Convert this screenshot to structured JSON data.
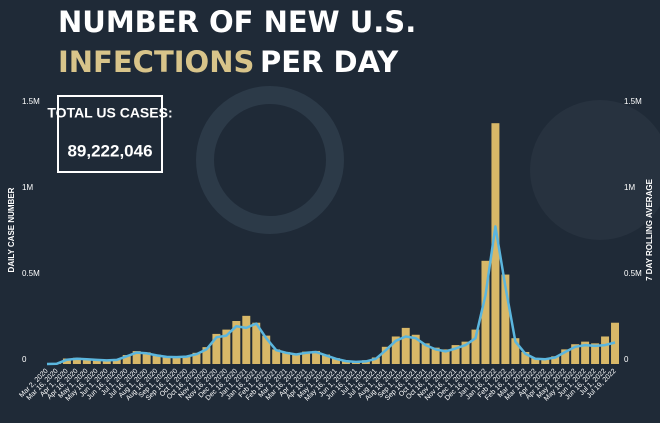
{
  "chart_data": {
    "type": "bar",
    "title": "NUMBER OF NEW U.S.",
    "title_highlight": "INFECTIONS",
    "title_rest": "PER DAY",
    "annotation_label": "TOTAL US CASES:",
    "annotation_value": "89,222,046",
    "y_label": "DAILY CASE NUMBER",
    "y2_label": "7 DAY ROLLING AVERAGE",
    "categories": [
      "Mar 2, 2020",
      "Mar 16, 2020",
      "Apr 1, 2020",
      "Apr 16, 2020",
      "May 1, 2020",
      "May 16, 2020",
      "Jun 1, 2020",
      "Jun 16, 2020",
      "Jul 1, 2020",
      "Jul 16, 2020",
      "Aug 1, 2020",
      "Aug 16, 2020",
      "Sep 1, 2020",
      "Sep 16, 2020",
      "Oct 1, 2020",
      "Oct 16, 2020",
      "Nov 1, 2020",
      "Nov 16, 2020",
      "Dec 1, 2020",
      "Dec 16, 2020",
      "Jan 1, 2021",
      "Jan 16, 2021",
      "Feb 1, 2021",
      "Feb 16, 2021",
      "Mar 1, 2021",
      "Mar 16, 2021",
      "Apr 1, 2021",
      "Apr 16, 2021",
      "May 1, 2021",
      "May 16, 2021",
      "Jun 1, 2021",
      "Jun 16, 2021",
      "Jul 1, 2021",
      "Jul 16, 2021",
      "Aug 1, 2021",
      "Aug 16, 2021",
      "Sep 1, 2021",
      "Sep 16, 2021",
      "Oct 1, 2021",
      "Oct 16, 2021",
      "Nov 1, 2021",
      "Nov 16, 2021",
      "Dec 1, 2021",
      "Dec 16, 2021",
      "Jan 1, 2022",
      "Jan 16, 2022",
      "Feb 1, 2022",
      "Feb 16, 2022",
      "Mar 1, 2022",
      "Mar 16, 2022",
      "Apr 1, 2022",
      "Apr 16, 2022",
      "May 1, 2022",
      "May 16, 2022",
      "Jun 1, 2022",
      "Jun 16, 2022",
      "Jul 1, 2022",
      "Jul 19, 2022"
    ],
    "series": [
      {
        "name": "Daily cases",
        "color": "#d8b868",
        "values": [
          0,
          3000,
          32000,
          36000,
          31000,
          27000,
          24000,
          29000,
          52000,
          75000,
          68000,
          55000,
          46000,
          44000,
          48000,
          65000,
          98000,
          175000,
          200000,
          250000,
          280000,
          240000,
          165000,
          85000,
          70000,
          60000,
          72000,
          76000,
          55000,
          34000,
          19000,
          13000,
          22000,
          38000,
          100000,
          160000,
          210000,
          170000,
          120000,
          95000,
          85000,
          110000,
          130000,
          200000,
          600000,
          1400000,
          520000,
          150000,
          70000,
          35000,
          33000,
          45000,
          85000,
          115000,
          130000,
          120000,
          160000,
          240000
        ]
      },
      {
        "name": "7 day rolling average",
        "color": "#5bb6de",
        "axis": "y2",
        "values": [
          0,
          2000,
          25000,
          30000,
          28000,
          24000,
          21000,
          24000,
          45000,
          66000,
          62000,
          50000,
          41000,
          40000,
          43000,
          57000,
          85000,
          155000,
          165000,
          220000,
          210000,
          235000,
          150000,
          80000,
          65000,
          55000,
          65000,
          70000,
          50000,
          30000,
          17000,
          12000,
          15000,
          30000,
          80000,
          135000,
          160000,
          150000,
          110000,
          85000,
          73000,
          90000,
          110000,
          150000,
          400000,
          800000,
          450000,
          130000,
          60000,
          30000,
          28000,
          38000,
          70000,
          100000,
          110000,
          105000,
          110000,
          125000
        ]
      }
    ],
    "ylim": [
      0,
      1500000
    ],
    "yticks": [
      0,
      {
        "value": 500000,
        "label": "0.5M"
      },
      {
        "value": 1000000,
        "label": "1M"
      },
      {
        "value": 1500000,
        "label": "1.5M"
      }
    ],
    "y2lim": [
      0,
      1500000
    ],
    "y2ticks": [
      0,
      {
        "value": 500000,
        "label": "0.5M"
      },
      {
        "value": 1000000,
        "label": "1M"
      },
      {
        "value": 1500000,
        "label": "1.5M"
      }
    ]
  }
}
